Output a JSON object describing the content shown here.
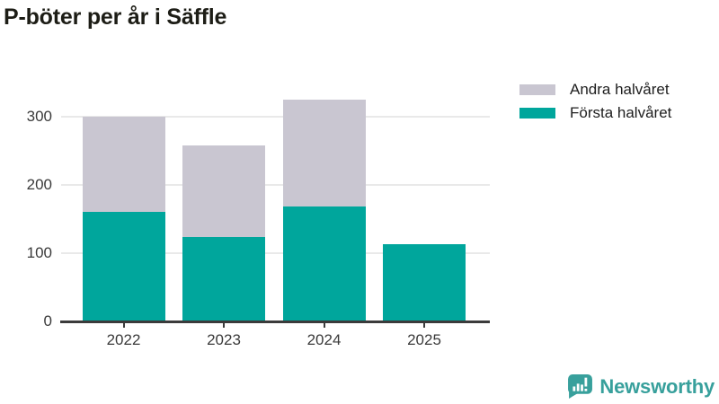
{
  "title": "P-böter per år i Säffle",
  "legend": [
    {
      "label": "Andra halvåret",
      "color": "#c9c6d1"
    },
    {
      "label": "Första halvåret",
      "color": "#00a69c"
    }
  ],
  "chart_data": {
    "type": "bar",
    "stacked": true,
    "title": "P-böter per år i Säffle",
    "categories": [
      "2022",
      "2023",
      "2024",
      "2025"
    ],
    "series": [
      {
        "name": "Första halvåret",
        "color": "#00a69c",
        "values": [
          160,
          124,
          169,
          113
        ]
      },
      {
        "name": "Andra halvåret",
        "color": "#c9c6d1",
        "values": [
          140,
          134,
          156,
          0
        ]
      }
    ],
    "yticks": [
      0,
      100,
      200,
      300
    ],
    "ylim": [
      0,
      350
    ],
    "xlabel": "",
    "ylabel": "",
    "grid": true,
    "legend_position": "top-right",
    "axis_color": "#3b3b3b",
    "gridline_color": "#e9e9e9"
  },
  "footer": {
    "brand": "Newsworthy",
    "brand_color": "#38a09c",
    "logo_icon": "newsworthy-chart-bubble-icon"
  }
}
